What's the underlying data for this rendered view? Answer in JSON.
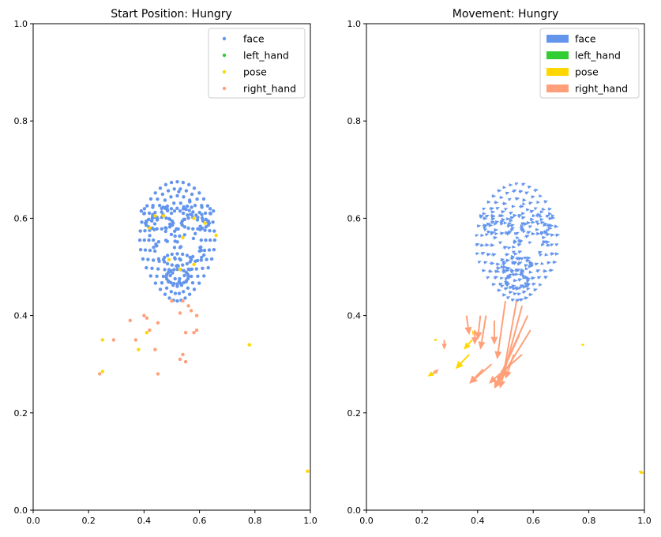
{
  "chart_data": [
    {
      "type": "scatter",
      "title": "Start Position: Hungry",
      "xlim": [
        0,
        1
      ],
      "ylim": [
        0,
        1
      ],
      "xticks": [
        "0.0",
        "0.2",
        "0.4",
        "0.6",
        "0.8",
        "1.0"
      ],
      "yticks": [
        "0.0",
        "0.2",
        "0.4",
        "0.6",
        "0.8",
        "1.0"
      ],
      "legend_position": "top-right",
      "series": [
        {
          "name": "face",
          "color": "#6495ED",
          "shape": "face-mesh",
          "center": [
            0.52,
            0.555
          ],
          "range_x": [
            0.41,
            0.68
          ],
          "range_y": [
            0.43,
            0.675
          ]
        },
        {
          "name": "left_hand",
          "color": "#32CD32",
          "points": []
        },
        {
          "name": "pose",
          "color": "#FFD700",
          "points": [
            [
              0.25,
              0.35
            ],
            [
              0.25,
              0.285
            ],
            [
              0.38,
              0.33
            ],
            [
              0.41,
              0.365
            ],
            [
              0.78,
              0.34
            ],
            [
              0.99,
              0.08
            ],
            [
              0.44,
              0.605
            ],
            [
              0.47,
              0.605
            ],
            [
              0.58,
              0.6
            ],
            [
              0.62,
              0.59
            ],
            [
              0.42,
              0.58
            ],
            [
              0.66,
              0.565
            ],
            [
              0.54,
              0.56
            ],
            [
              0.49,
              0.515
            ],
            [
              0.58,
              0.505
            ],
            [
              0.53,
              0.495
            ]
          ]
        },
        {
          "name": "right_hand",
          "color": "#FFA07A",
          "points": [
            [
              0.24,
              0.28
            ],
            [
              0.29,
              0.35
            ],
            [
              0.35,
              0.39
            ],
            [
              0.37,
              0.35
            ],
            [
              0.4,
              0.4
            ],
            [
              0.41,
              0.395
            ],
            [
              0.42,
              0.37
            ],
            [
              0.44,
              0.33
            ],
            [
              0.45,
              0.385
            ],
            [
              0.45,
              0.28
            ],
            [
              0.5,
              0.43
            ],
            [
              0.54,
              0.43
            ],
            [
              0.56,
              0.42
            ],
            [
              0.53,
              0.405
            ],
            [
              0.57,
              0.41
            ],
            [
              0.59,
              0.4
            ],
            [
              0.55,
              0.365
            ],
            [
              0.58,
              0.365
            ],
            [
              0.59,
              0.37
            ],
            [
              0.53,
              0.31
            ],
            [
              0.54,
              0.32
            ],
            [
              0.55,
              0.305
            ]
          ]
        }
      ]
    },
    {
      "type": "quiver",
      "title": "Movement: Hungry",
      "xlim": [
        0,
        1
      ],
      "ylim": [
        0,
        1
      ],
      "xticks": [
        "0.0",
        "0.2",
        "0.4",
        "0.6",
        "0.8",
        "1.0"
      ],
      "yticks": [
        "0.0",
        "0.2",
        "0.4",
        "0.6",
        "0.8",
        "1.0"
      ],
      "legend_position": "top-right",
      "series": [
        {
          "name": "face",
          "color": "#6495ED",
          "shape": "face-mesh",
          "center": [
            0.535,
            0.545
          ],
          "range_x": [
            0.4,
            0.69
          ],
          "range_y": [
            0.43,
            0.67
          ]
        },
        {
          "name": "left_hand",
          "color": "#32CD32",
          "arrows": []
        },
        {
          "name": "pose",
          "color": "#FFD700",
          "arrows": [
            [
              0.25,
              0.285,
              -0.03,
              -0.01
            ],
            [
              0.25,
              0.35,
              -0.01,
              0.0
            ],
            [
              0.37,
              0.32,
              -0.05,
              -0.03
            ],
            [
              0.38,
              0.35,
              -0.03,
              -0.02
            ],
            [
              0.39,
              0.36,
              -0.01,
              0.01
            ],
            [
              0.78,
              0.34,
              -0.01,
              0.0
            ],
            [
              0.98,
              0.08,
              0.02,
              -0.005
            ]
          ]
        },
        {
          "name": "right_hand",
          "color": "#FFA07A",
          "arrows": [
            [
              0.24,
              0.28,
              0.02,
              0.01
            ],
            [
              0.28,
              0.35,
              0.0,
              -0.02
            ],
            [
              0.36,
              0.4,
              0.01,
              -0.04
            ],
            [
              0.39,
              0.37,
              0.0,
              -0.03
            ],
            [
              0.41,
              0.4,
              -0.01,
              -0.05
            ],
            [
              0.43,
              0.4,
              -0.02,
              -0.07
            ],
            [
              0.46,
              0.39,
              0.0,
              -0.05
            ],
            [
              0.5,
              0.43,
              -0.03,
              -0.12
            ],
            [
              0.54,
              0.43,
              -0.05,
              -0.16
            ],
            [
              0.56,
              0.42,
              -0.08,
              -0.17
            ],
            [
              0.58,
              0.4,
              -0.12,
              -0.15
            ],
            [
              0.59,
              0.37,
              -0.13,
              -0.12
            ],
            [
              0.55,
              0.36,
              -0.08,
              -0.1
            ],
            [
              0.56,
              0.32,
              -0.12,
              -0.06
            ],
            [
              0.45,
              0.3,
              -0.08,
              -0.04
            ],
            [
              0.42,
              0.29,
              -0.05,
              -0.03
            ],
            [
              0.53,
              0.32,
              -0.03,
              -0.05
            ]
          ]
        }
      ]
    }
  ]
}
